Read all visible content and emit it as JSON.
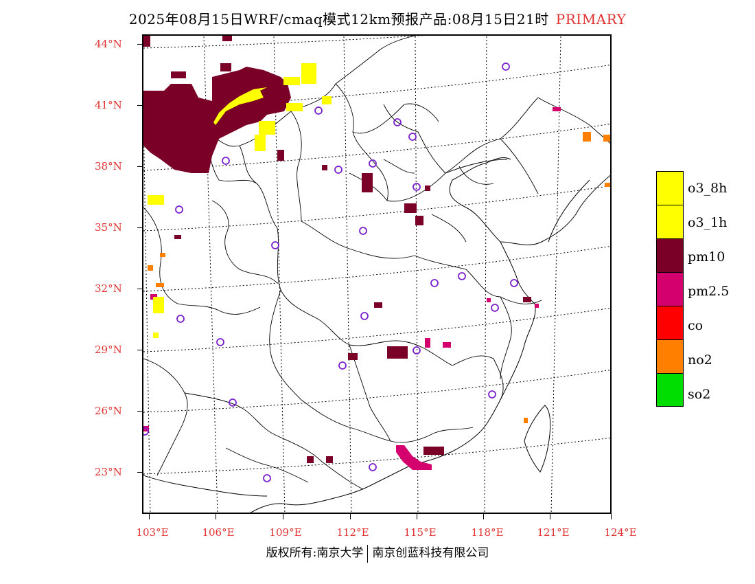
{
  "title": {
    "main": "2025年08月15日WRF/cmaq模式12km预报产品:08月15日21时",
    "badge": "PRIMARY"
  },
  "axes": {
    "lat_labels": [
      "44°N",
      "41°N",
      "38°N",
      "35°N",
      "32°N",
      "29°N",
      "26°N",
      "23°N"
    ],
    "lon_labels": [
      "103°E",
      "106°E",
      "109°E",
      "112°E",
      "115°E",
      "118°E",
      "121°E",
      "124°E"
    ]
  },
  "legend": {
    "items": [
      {
        "label": "o3_8h",
        "color": "#ffff00"
      },
      {
        "label": "o3_1h",
        "color": "#ffff00"
      },
      {
        "label": "pm10",
        "color": "#7a0028"
      },
      {
        "label": "pm2.5",
        "color": "#d4006e"
      },
      {
        "label": "co",
        "color": "#ff0000"
      },
      {
        "label": "no2",
        "color": "#ff8000"
      },
      {
        "label": "so2",
        "color": "#00dd00"
      }
    ]
  },
  "footer": {
    "left": "版权所有:南京大学",
    "right": "南京创蓝科技有限公司"
  }
}
